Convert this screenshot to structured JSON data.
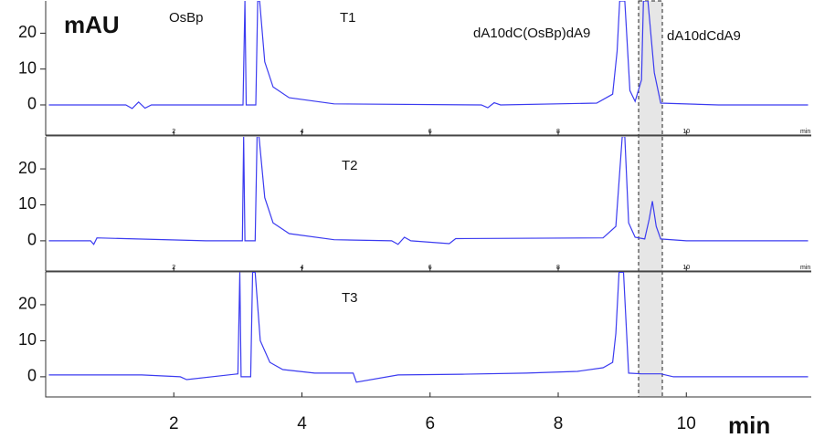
{
  "chart_data": [
    {
      "type": "line",
      "y_label": "mAU",
      "x_label": "min",
      "annotations": [
        "OsBp",
        "T1",
        "dA10dC(OsBp)dA9",
        "dA10dCdA9"
      ],
      "xlim": [
        0,
        11.95
      ],
      "ylim": [
        -8.4,
        29
      ],
      "xticks": [
        2,
        4,
        6,
        8,
        10
      ],
      "yticks": [
        0,
        10,
        20
      ],
      "series": [
        {
          "color": "#3b3bf0",
          "x": [
            0.05,
            1.25,
            1.35,
            1.45,
            1.55,
            1.65,
            3.08,
            3.11,
            3.13,
            3.28,
            3.31,
            3.34,
            3.42,
            3.55,
            3.8,
            4.5,
            6.8,
            6.9,
            7.0,
            7.1,
            8.6,
            8.85,
            8.92,
            8.96,
            9.04,
            9.12,
            9.2,
            9.3,
            9.33,
            9.4,
            9.5,
            9.6,
            10.5,
            11.9
          ],
          "values": [
            0,
            0,
            -1,
            0.8,
            -0.9,
            0,
            0,
            29,
            0,
            0,
            29,
            29,
            12,
            5,
            2,
            0.3,
            0,
            -0.8,
            0.6,
            0,
            0.5,
            3,
            15,
            29,
            29,
            4,
            1,
            7,
            29,
            29,
            9,
            0.5,
            0,
            0
          ]
        }
      ]
    },
    {
      "type": "line",
      "x_label": "min",
      "annotations": [
        "T2"
      ],
      "xlim": [
        0,
        11.95
      ],
      "ylim": [
        -8.4,
        28.9
      ],
      "xticks": [
        2,
        4,
        6,
        8,
        10
      ],
      "yticks": [
        0,
        10,
        20
      ],
      "series": [
        {
          "color": "#3b3bf0",
          "x": [
            0.05,
            0.7,
            0.75,
            0.8,
            2.5,
            3.07,
            3.09,
            3.11,
            3.27,
            3.3,
            3.33,
            3.42,
            3.55,
            3.8,
            4.5,
            5.4,
            5.5,
            5.6,
            5.7,
            6.3,
            6.4,
            8.7,
            8.9,
            9.0,
            9.04,
            9.1,
            9.2,
            9.35,
            9.42,
            9.47,
            9.53,
            9.6,
            10,
            11.9
          ],
          "values": [
            0,
            0,
            -1,
            0.8,
            0,
            0,
            29,
            0,
            0,
            29,
            29,
            12,
            5,
            2,
            0.3,
            0,
            -1,
            1,
            0,
            -0.8,
            0.6,
            0.8,
            4,
            29,
            29,
            5,
            1,
            0.5,
            6,
            11,
            4,
            0.5,
            0,
            0
          ]
        }
      ]
    },
    {
      "type": "line",
      "x_label": "min",
      "annotations": [
        "T3"
      ],
      "xlim": [
        0,
        11.95
      ],
      "ylim": [
        -5.6,
        29.1
      ],
      "xticks": [
        2,
        4,
        6,
        8,
        10
      ],
      "yticks": [
        0,
        10,
        20
      ],
      "series": [
        {
          "color": "#3b3bf0",
          "x": [
            0.05,
            1.5,
            2.1,
            2.2,
            3.0,
            3.03,
            3.05,
            3.2,
            3.23,
            3.27,
            3.35,
            3.5,
            3.7,
            4.2,
            4.8,
            4.85,
            5.5,
            6.5,
            7.5,
            8.3,
            8.7,
            8.85,
            8.9,
            8.95,
            9.02,
            9.1,
            9.3,
            9.6,
            9.8,
            11.9
          ],
          "values": [
            0.5,
            0.5,
            0,
            -0.8,
            0.8,
            29,
            0,
            0,
            29,
            29,
            10,
            4,
            2,
            1,
            1,
            -1.5,
            0.5,
            0.7,
            1,
            1.5,
            2.5,
            4,
            12,
            29,
            29,
            1,
            0.8,
            0.8,
            0,
            0
          ]
        }
      ]
    }
  ]
}
